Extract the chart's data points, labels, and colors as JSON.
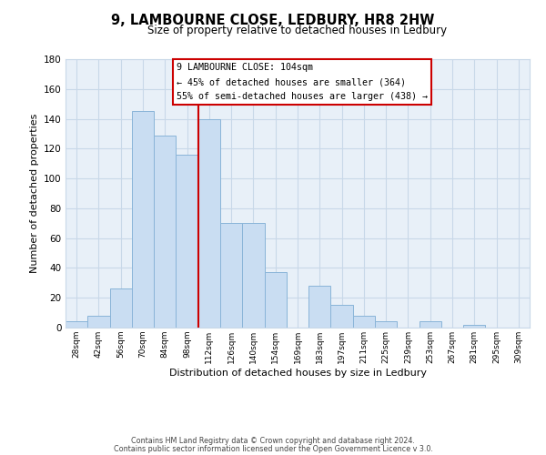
{
  "title": "9, LAMBOURNE CLOSE, LEDBURY, HR8 2HW",
  "subtitle": "Size of property relative to detached houses in Ledbury",
  "xlabel": "Distribution of detached houses by size in Ledbury",
  "ylabel": "Number of detached properties",
  "bar_labels": [
    "28sqm",
    "42sqm",
    "56sqm",
    "70sqm",
    "84sqm",
    "98sqm",
    "112sqm",
    "126sqm",
    "140sqm",
    "154sqm",
    "169sqm",
    "183sqm",
    "197sqm",
    "211sqm",
    "225sqm",
    "239sqm",
    "253sqm",
    "267sqm",
    "281sqm",
    "295sqm",
    "309sqm"
  ],
  "bar_values": [
    4,
    8,
    26,
    145,
    129,
    116,
    140,
    70,
    70,
    37,
    0,
    28,
    15,
    8,
    4,
    0,
    4,
    0,
    2,
    0,
    0
  ],
  "bar_color": "#c9ddf2",
  "bar_edge_color": "#89b4d8",
  "vline_x_index": 6,
  "vline_color": "#cc0000",
  "ylim": [
    0,
    180
  ],
  "yticks": [
    0,
    20,
    40,
    60,
    80,
    100,
    120,
    140,
    160,
    180
  ],
  "annotation_title": "9 LAMBOURNE CLOSE: 104sqm",
  "annotation_line1": "← 45% of detached houses are smaller (364)",
  "annotation_line2": "55% of semi-detached houses are larger (438) →",
  "annotation_box_facecolor": "#ffffff",
  "annotation_box_edgecolor": "#cc0000",
  "footer1": "Contains HM Land Registry data © Crown copyright and database right 2024.",
  "footer2": "Contains public sector information licensed under the Open Government Licence v 3.0.",
  "background_color": "#ffffff",
  "plot_bg_color": "#e8f0f8",
  "grid_color": "#c8d8e8"
}
